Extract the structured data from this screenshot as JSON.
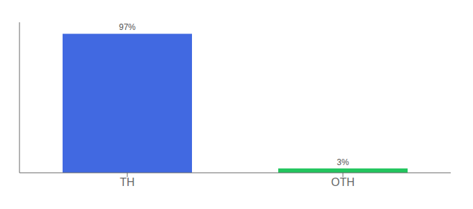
{
  "chart_data": {
    "type": "bar",
    "categories": [
      "TH",
      "OTH"
    ],
    "values": [
      97,
      3
    ],
    "value_labels": [
      "97%",
      "3%"
    ],
    "colors": [
      "#4169e1",
      "#22c55e"
    ],
    "ylim": [
      0,
      105
    ],
    "data_labels": true,
    "tick_labels": "x"
  }
}
